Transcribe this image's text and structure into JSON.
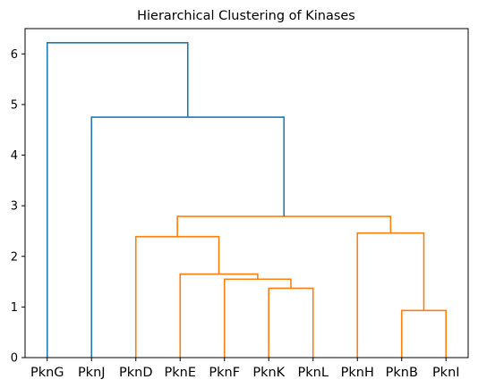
{
  "chart_data": {
    "type": "dendrogram",
    "title": "Hierarchical Clustering of Kinases",
    "xlabel": "",
    "ylabel": "",
    "ylim": [
      0,
      6.5
    ],
    "yticks": [
      0,
      1,
      2,
      3,
      4,
      5,
      6
    ],
    "leaves": [
      "PknG",
      "PknJ",
      "PknD",
      "PknE",
      "PknF",
      "PknK",
      "PknL",
      "PknH",
      "PknB",
      "PknI"
    ],
    "colors": {
      "orange": "#ff7f0e",
      "blue": "#1f77b4"
    },
    "links": [
      {
        "x": [
          5.5,
          5.5,
          6.5,
          6.5
        ],
        "y": [
          0,
          1.37,
          1.37,
          0
        ],
        "color": "orange"
      },
      {
        "x": [
          4.5,
          4.5,
          6.0,
          6.0
        ],
        "y": [
          0,
          1.55,
          1.55,
          1.37
        ],
        "color": "orange"
      },
      {
        "x": [
          3.5,
          3.5,
          5.25,
          5.25
        ],
        "y": [
          0,
          1.65,
          1.65,
          1.55
        ],
        "color": "orange"
      },
      {
        "x": [
          2.5,
          2.5,
          4.375,
          4.375
        ],
        "y": [
          0,
          2.39,
          2.39,
          1.65
        ],
        "color": "orange"
      },
      {
        "x": [
          8.5,
          8.5,
          9.5,
          9.5
        ],
        "y": [
          0,
          0.93,
          0.93,
          0
        ],
        "color": "orange"
      },
      {
        "x": [
          7.5,
          7.5,
          9.0,
          9.0
        ],
        "y": [
          0,
          2.46,
          2.46,
          0.93
        ],
        "color": "orange"
      },
      {
        "x": [
          3.4375,
          3.4375,
          8.25,
          8.25
        ],
        "y": [
          2.39,
          2.79,
          2.79,
          2.46
        ],
        "color": "orange"
      },
      {
        "x": [
          1.5,
          1.5,
          5.84375,
          5.84375
        ],
        "y": [
          0,
          4.75,
          4.75,
          2.79
        ],
        "color": "blue"
      },
      {
        "x": [
          0.5,
          0.5,
          3.671875,
          3.671875
        ],
        "y": [
          0,
          6.22,
          6.22,
          4.75
        ],
        "color": "blue"
      }
    ]
  }
}
